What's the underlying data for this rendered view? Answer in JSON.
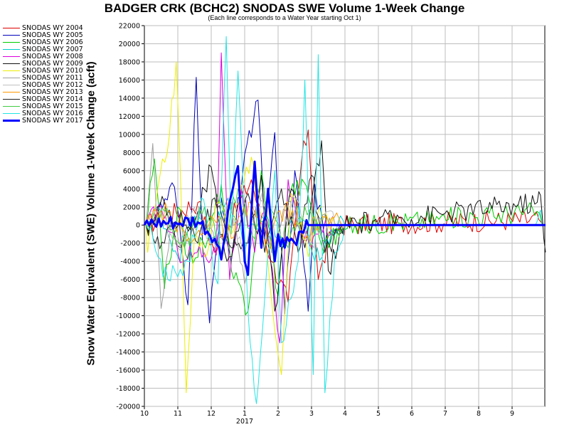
{
  "chart_data": {
    "type": "line",
    "title": "BADGER CRK (BCHC2) SNODAS SWE Volume 1-Week Change",
    "subtitle": "(Each line corresponds to a Water Year starting Oct 1)",
    "ylabel": "Snow Water Equivalent (SWE) Volume 1-Week Change (acft)",
    "xlabel": "",
    "year_label": "2017",
    "ylim": [
      -20000,
      22000
    ],
    "grid": true,
    "legend_position": "left",
    "y_ticks": [
      "22000",
      "20000",
      "18000",
      "16000",
      "14000",
      "12000",
      "10000",
      "8000",
      "6000",
      "4000",
      "2000",
      "0",
      "-2000",
      "-4000",
      "-6000",
      "-8000",
      "-10000",
      "-12000",
      "-14000",
      "-16000",
      "-18000",
      "-20000"
    ],
    "x_ticks": [
      "10",
      "11",
      "12",
      "1",
      "2",
      "3",
      "4",
      "5",
      "6",
      "7",
      "8",
      "9"
    ],
    "series": [
      {
        "name": "SNODAS WY 2004",
        "color": "#dd0000",
        "width": 1,
        "peaks": [
          [
            0.05,
            0
          ],
          [
            1.6,
            2500
          ],
          [
            2.1,
            -3000
          ],
          [
            3.2,
            5000
          ],
          [
            3.8,
            -4000
          ],
          [
            4.3,
            -8500
          ],
          [
            4.7,
            7000
          ],
          [
            4.9,
            10500
          ],
          [
            5.2,
            -6000
          ],
          [
            5.6,
            -1000
          ],
          [
            5.9,
            0
          ],
          [
            11.8,
            600
          ],
          [
            11.95,
            0
          ]
        ]
      },
      {
        "name": "SNODAS WY 2005",
        "color": "#0000bb",
        "width": 1,
        "peaks": [
          [
            0.05,
            0
          ],
          [
            0.4,
            1200
          ],
          [
            0.9,
            4200
          ],
          [
            1.3,
            -8800
          ],
          [
            1.55,
            16300
          ],
          [
            1.75,
            -3000
          ],
          [
            1.95,
            -10800
          ],
          [
            2.3,
            3000
          ],
          [
            2.6,
            -4000
          ],
          [
            3.0,
            7800
          ],
          [
            3.4,
            13800
          ],
          [
            3.6,
            -1500
          ],
          [
            3.9,
            10200
          ],
          [
            4.2,
            -9800
          ],
          [
            4.5,
            6000
          ],
          [
            4.9,
            -9500
          ],
          [
            5.1,
            4500
          ],
          [
            5.4,
            -2000
          ],
          [
            5.7,
            -500
          ],
          [
            5.9,
            0
          ]
        ]
      },
      {
        "name": "SNODAS WY 2006",
        "color": "#00cc00",
        "width": 1,
        "peaks": [
          [
            0.05,
            0
          ],
          [
            0.3,
            7300
          ],
          [
            0.6,
            -7000
          ],
          [
            1.0,
            2000
          ],
          [
            1.3,
            -3800
          ],
          [
            1.9,
            -1500
          ],
          [
            2.3,
            4500
          ],
          [
            2.6,
            -5000
          ],
          [
            3.1,
            -9500
          ],
          [
            3.5,
            6000
          ],
          [
            4.0,
            -7800
          ],
          [
            4.3,
            4000
          ],
          [
            4.85,
            4300
          ],
          [
            5.3,
            -2200
          ],
          [
            6.0,
            -500
          ],
          [
            6.3,
            0
          ],
          [
            11.75,
            1500
          ],
          [
            11.9,
            0
          ]
        ]
      },
      {
        "name": "SNODAS WY 2007",
        "color": "#00cccc",
        "width": 1,
        "peaks": [
          [
            0.05,
            0
          ],
          [
            0.5,
            1500
          ],
          [
            1.0,
            -3500
          ],
          [
            1.5,
            1000
          ],
          [
            2.0,
            -1500
          ],
          [
            2.5,
            3000
          ],
          [
            3.0,
            -2500
          ],
          [
            3.5,
            1000
          ],
          [
            4.2,
            -2500
          ],
          [
            4.6,
            2000
          ],
          [
            5.1,
            -4000
          ],
          [
            5.6,
            -500
          ],
          [
            6.0,
            0
          ]
        ]
      },
      {
        "name": "SNODAS WY 2008",
        "color": "#dd00dd",
        "width": 1,
        "peaks": [
          [
            0.05,
            0
          ],
          [
            0.5,
            2000
          ],
          [
            1.0,
            -3000
          ],
          [
            2.15,
            -3300
          ],
          [
            2.3,
            19000
          ],
          [
            2.55,
            -6000
          ],
          [
            2.9,
            4000
          ],
          [
            3.3,
            -3000
          ],
          [
            3.6,
            1500
          ],
          [
            4.05,
            -13000
          ],
          [
            4.3,
            5000
          ],
          [
            4.7,
            -2000
          ],
          [
            5.2,
            -1000
          ],
          [
            5.7,
            0
          ]
        ]
      },
      {
        "name": "SNODAS WY 2009",
        "color": "#111111",
        "width": 1,
        "peaks": [
          [
            0.05,
            0
          ],
          [
            0.6,
            2500
          ],
          [
            1.1,
            -2500
          ],
          [
            1.6,
            1500
          ],
          [
            2.0,
            6400
          ],
          [
            2.4,
            -3000
          ],
          [
            3.1,
            -2000
          ],
          [
            3.5,
            5500
          ],
          [
            3.9,
            -9500
          ],
          [
            4.4,
            4000
          ],
          [
            4.8,
            -2500
          ],
          [
            5.3,
            9300
          ],
          [
            5.5,
            -5000
          ],
          [
            5.8,
            -2000
          ],
          [
            6.0,
            0
          ],
          [
            11.75,
            2500
          ],
          [
            11.85,
            3300
          ],
          [
            11.95,
            -1500
          ],
          [
            12.0,
            -3000
          ]
        ]
      },
      {
        "name": "SNODAS WY 2010",
        "color": "#eeee00",
        "width": 1,
        "peaks": [
          [
            0.05,
            0
          ],
          [
            0.1,
            -3000
          ],
          [
            0.4,
            4000
          ],
          [
            0.75,
            10000
          ],
          [
            0.95,
            18000
          ],
          [
            1.1,
            3000
          ],
          [
            1.25,
            -18500
          ],
          [
            1.5,
            -1000
          ],
          [
            1.8,
            -3500
          ],
          [
            2.2,
            2500
          ],
          [
            2.6,
            -1000
          ],
          [
            3.2,
            7500
          ],
          [
            3.6,
            -2000
          ],
          [
            4.1,
            -16500
          ],
          [
            4.4,
            3500
          ],
          [
            4.9,
            -3500
          ],
          [
            5.2,
            1500
          ],
          [
            5.7,
            0
          ]
        ]
      },
      {
        "name": "SNODAS WY 2011",
        "color": "#a0a0a0",
        "width": 1,
        "peaks": [
          [
            0.05,
            0
          ],
          [
            0.25,
            9000
          ],
          [
            0.5,
            -9200
          ],
          [
            0.8,
            1000
          ],
          [
            1.2,
            -2500
          ],
          [
            1.7,
            1500
          ],
          [
            2.2,
            -2000
          ],
          [
            2.6,
            2500
          ],
          [
            3.0,
            -6500
          ],
          [
            3.4,
            4000
          ],
          [
            3.8,
            -3000
          ],
          [
            4.3,
            2500
          ],
          [
            4.7,
            -2000
          ],
          [
            5.2,
            1000
          ],
          [
            5.6,
            0
          ]
        ]
      },
      {
        "name": "SNODAS WY 2012",
        "color": "#c0c0c0",
        "width": 1,
        "peaks": [
          [
            0.05,
            0
          ],
          [
            0.5,
            1500
          ],
          [
            1.0,
            -2500
          ],
          [
            1.5,
            2000
          ],
          [
            2.0,
            -2000
          ],
          [
            2.5,
            2500
          ],
          [
            3.0,
            -3000
          ],
          [
            3.5,
            3500
          ],
          [
            4.0,
            -2500
          ],
          [
            4.5,
            3000
          ],
          [
            5.0,
            -2000
          ],
          [
            5.5,
            1500
          ],
          [
            5.9,
            0
          ]
        ]
      },
      {
        "name": "SNODAS WY 2013",
        "color": "#ff9900",
        "width": 1,
        "peaks": [
          [
            0.05,
            0
          ],
          [
            0.7,
            1500
          ],
          [
            1.4,
            -2000
          ],
          [
            2.0,
            1000
          ],
          [
            2.6,
            -1500
          ],
          [
            3.2,
            2500
          ],
          [
            3.7,
            -2000
          ],
          [
            4.2,
            2000
          ],
          [
            4.8,
            -1500
          ],
          [
            5.3,
            1000
          ],
          [
            5.9,
            0
          ]
        ]
      },
      {
        "name": "SNODAS WY 2014",
        "color": "#222222",
        "width": 1,
        "peaks": [
          [
            0.05,
            0
          ],
          [
            0.6,
            -2000
          ],
          [
            1.1,
            1500
          ],
          [
            1.6,
            -2000
          ],
          [
            2.1,
            3000
          ],
          [
            2.6,
            -2500
          ],
          [
            3.1,
            3500
          ],
          [
            3.6,
            -3000
          ],
          [
            4.1,
            4000
          ],
          [
            4.6,
            -3000
          ],
          [
            5.0,
            5500
          ],
          [
            5.4,
            -3000
          ],
          [
            5.8,
            -1000
          ],
          [
            6.0,
            0
          ]
        ]
      },
      {
        "name": "SNODAS WY 2015",
        "color": "#44cc44",
        "width": 1,
        "peaks": [
          [
            0.05,
            0
          ],
          [
            0.6,
            1500
          ],
          [
            1.2,
            -2500
          ],
          [
            1.8,
            2000
          ],
          [
            2.3,
            -3000
          ],
          [
            2.8,
            4000
          ],
          [
            3.3,
            -1500
          ],
          [
            3.7,
            3000
          ],
          [
            4.3,
            -2500
          ],
          [
            4.8,
            2000
          ],
          [
            5.3,
            -1500
          ],
          [
            5.9,
            0
          ]
        ]
      },
      {
        "name": "SNODAS WY 2016",
        "color": "#22e5e5",
        "width": 1,
        "peaks": [
          [
            0.05,
            0
          ],
          [
            0.7,
            -6000
          ],
          [
            1.3,
            -4000
          ],
          [
            1.7,
            3000
          ],
          [
            2.2,
            -6500
          ],
          [
            2.45,
            20800
          ],
          [
            2.6,
            -1000
          ],
          [
            2.8,
            17000
          ],
          [
            3.1,
            -9500
          ],
          [
            3.35,
            -19700
          ],
          [
            3.6,
            -8000
          ],
          [
            3.9,
            6000
          ],
          [
            4.1,
            -13000
          ],
          [
            4.6,
            -4000
          ],
          [
            4.8,
            16000
          ],
          [
            5.05,
            -16500
          ],
          [
            5.2,
            18800
          ],
          [
            5.4,
            -18500
          ],
          [
            5.7,
            -3000
          ],
          [
            6.0,
            0
          ],
          [
            11.7,
            0
          ],
          [
            11.8,
            1200
          ],
          [
            11.9,
            0
          ],
          [
            12.0,
            0
          ]
        ]
      },
      {
        "name": "SNODAS WY 2017",
        "color": "#0000ff",
        "width": 3,
        "peaks": [
          [
            0.0,
            0
          ],
          [
            1.0,
            100
          ],
          [
            1.6,
            300
          ],
          [
            2.1,
            -1500
          ],
          [
            2.3,
            -3800
          ],
          [
            2.5,
            1500
          ],
          [
            2.8,
            6500
          ],
          [
            3.0,
            -4000
          ],
          [
            3.1,
            -5500
          ],
          [
            3.3,
            7000
          ],
          [
            3.5,
            -2500
          ],
          [
            3.7,
            4000
          ],
          [
            3.9,
            -4000
          ],
          [
            4.0,
            -1000
          ],
          [
            4.2,
            -2500
          ],
          [
            4.4,
            -1500
          ],
          [
            4.55,
            -2200
          ],
          [
            4.7,
            -700
          ],
          [
            4.8,
            -300
          ],
          [
            4.9,
            0
          ],
          [
            12.0,
            0
          ]
        ]
      }
    ]
  }
}
